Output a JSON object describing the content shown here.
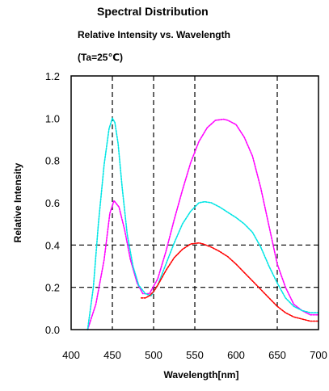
{
  "chart_data": {
    "type": "line",
    "title": "Spectral Distribution",
    "subtitle": "Relative Intensity vs. Wavelength",
    "condition": "(Ta=25℃)",
    "xlabel": "Wavelength[nm]",
    "ylabel": "Relative Intensity",
    "xlim": [
      400,
      700
    ],
    "ylim": [
      0.0,
      1.2
    ],
    "x_ticks": [
      400,
      450,
      500,
      550,
      600,
      650,
      700
    ],
    "x_tick_labels": [
      "400",
      "450",
      "500",
      "550",
      "600",
      "650",
      "700"
    ],
    "y_ticks": [
      0.0,
      0.2,
      0.4,
      0.6,
      0.8,
      1.0,
      1.2
    ],
    "y_tick_labels": [
      "0.0",
      "0.2",
      "0.4",
      "0.6",
      "0.8",
      "1.0",
      "1.2"
    ],
    "grid": {
      "x_dashed_at": [
        450,
        500,
        550,
        650
      ],
      "y_dashed_at": [
        0.2,
        0.4
      ]
    },
    "series": [
      {
        "color": "#ff00ff",
        "x": [
          420,
          430,
          440,
          447,
          452,
          458,
          465,
          472,
          480,
          487,
          495,
          505,
          515,
          525,
          535,
          545,
          555,
          565,
          575,
          585,
          590,
          600,
          610,
          620,
          630,
          640,
          650,
          660,
          670,
          680,
          690,
          700
        ],
        "y": [
          0.0,
          0.12,
          0.33,
          0.55,
          0.61,
          0.58,
          0.47,
          0.33,
          0.22,
          0.17,
          0.17,
          0.24,
          0.37,
          0.52,
          0.66,
          0.79,
          0.89,
          0.955,
          0.99,
          0.995,
          0.99,
          0.97,
          0.91,
          0.82,
          0.67,
          0.49,
          0.31,
          0.2,
          0.12,
          0.09,
          0.07,
          0.07
        ]
      },
      {
        "color": "#00e5e5",
        "x": [
          420,
          427,
          433,
          440,
          446,
          450,
          453,
          457,
          462,
          468,
          475,
          482,
          490,
          497,
          505,
          515,
          525,
          535,
          545,
          555,
          562,
          570,
          580,
          590,
          600,
          610,
          620,
          630,
          640,
          650,
          660,
          670,
          680,
          690,
          700
        ],
        "y": [
          0.0,
          0.2,
          0.5,
          0.78,
          0.95,
          1.0,
          0.98,
          0.88,
          0.67,
          0.45,
          0.3,
          0.21,
          0.17,
          0.16,
          0.21,
          0.31,
          0.41,
          0.5,
          0.56,
          0.6,
          0.605,
          0.6,
          0.58,
          0.555,
          0.53,
          0.5,
          0.46,
          0.39,
          0.3,
          0.22,
          0.15,
          0.11,
          0.09,
          0.08,
          0.08
        ]
      },
      {
        "color": "#ff0000",
        "x": [
          485,
          490,
          495,
          500,
          505,
          515,
          525,
          535,
          545,
          555,
          560,
          570,
          580,
          590,
          600,
          610,
          620,
          630,
          640,
          650,
          660,
          670,
          680,
          690,
          700
        ],
        "y": [
          0.15,
          0.15,
          0.16,
          0.18,
          0.21,
          0.28,
          0.34,
          0.38,
          0.405,
          0.41,
          0.405,
          0.39,
          0.37,
          0.345,
          0.31,
          0.27,
          0.23,
          0.19,
          0.15,
          0.11,
          0.08,
          0.06,
          0.05,
          0.04,
          0.04
        ]
      }
    ]
  }
}
